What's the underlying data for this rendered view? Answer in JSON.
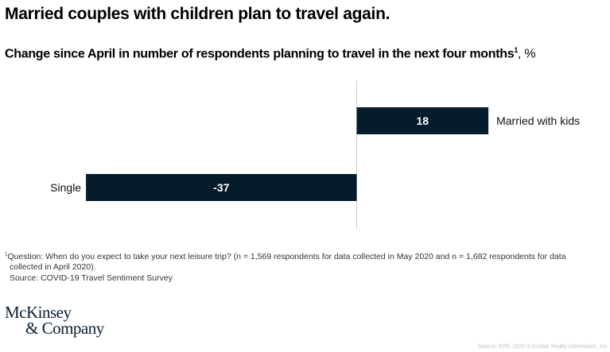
{
  "title": "Married couples with children plan to travel again.",
  "subtitle": {
    "text": "Change since April in number of respondents planning to travel in the next four months",
    "footnote_marker": "1",
    "unit": ", %"
  },
  "chart_data": {
    "type": "bar",
    "orientation": "horizontal",
    "title": "Change since April in number of respondents planning to travel in the next four months, %",
    "categories": [
      "Married with kids",
      "Single"
    ],
    "values": [
      18,
      -37
    ],
    "data_labels": [
      "18",
      "-37"
    ],
    "xlabel": "",
    "ylabel": "",
    "xlim": [
      -37,
      18
    ],
    "zero_line": true,
    "grid": false,
    "legend": "none",
    "bar_color": "#051c2c",
    "label_color": "#ffffff"
  },
  "footnote": {
    "marker": "1",
    "line1": "Question: When do you expect to take your next leisure trip? (n = 1,569 respondents for data collected in May 2020 and n = 1,682 respondents for data",
    "line2": "collected in April 2020).",
    "source": "Source: COVID-19 Travel Sentiment Survey"
  },
  "logo": {
    "line1": "McKinsey",
    "line2": "& Company"
  },
  "credit": "Source: STR. 2020 © CoStar Realty Information, Inc."
}
